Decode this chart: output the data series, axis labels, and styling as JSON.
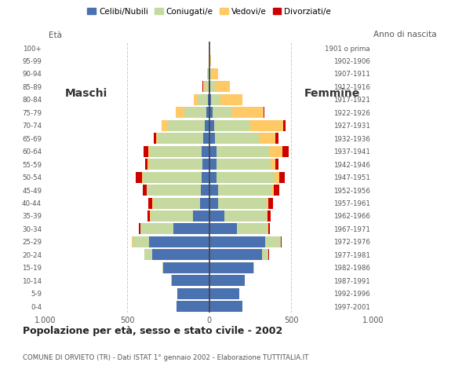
{
  "age_groups": [
    "0-4",
    "5-9",
    "10-14",
    "15-19",
    "20-24",
    "25-29",
    "30-34",
    "35-39",
    "40-44",
    "45-49",
    "50-54",
    "55-59",
    "60-64",
    "65-69",
    "70-74",
    "75-79",
    "80-84",
    "85-89",
    "90-94",
    "95-99",
    "100+"
  ],
  "birth_years": [
    "1997-2001",
    "1992-1996",
    "1987-1991",
    "1982-1986",
    "1977-1981",
    "1972-1976",
    "1967-1971",
    "1962-1966",
    "1957-1961",
    "1952-1956",
    "1947-1951",
    "1942-1946",
    "1937-1941",
    "1932-1936",
    "1927-1931",
    "1922-1926",
    "1917-1921",
    "1912-1916",
    "1907-1911",
    "1902-1906",
    "1901 o prima"
  ],
  "males": {
    "celibe": [
      200,
      195,
      230,
      280,
      350,
      370,
      220,
      100,
      55,
      50,
      45,
      40,
      45,
      35,
      30,
      20,
      10,
      5,
      2,
      0,
      0
    ],
    "coniugato": [
      0,
      0,
      2,
      5,
      45,
      100,
      200,
      260,
      290,
      330,
      360,
      330,
      320,
      280,
      230,
      130,
      60,
      25,
      8,
      0,
      0
    ],
    "vedovo": [
      0,
      0,
      0,
      0,
      0,
      1,
      2,
      2,
      2,
      3,
      5,
      5,
      8,
      12,
      30,
      55,
      25,
      8,
      2,
      0,
      0
    ],
    "divorziato": [
      0,
      0,
      0,
      0,
      2,
      3,
      8,
      15,
      25,
      25,
      40,
      18,
      30,
      12,
      3,
      2,
      2,
      2,
      0,
      0,
      0
    ]
  },
  "females": {
    "nubile": [
      200,
      185,
      215,
      270,
      320,
      340,
      170,
      90,
      55,
      55,
      45,
      45,
      45,
      35,
      30,
      20,
      10,
      5,
      2,
      2,
      0
    ],
    "coniugata": [
      0,
      0,
      2,
      5,
      40,
      95,
      185,
      260,
      295,
      325,
      355,
      330,
      320,
      270,
      220,
      120,
      60,
      30,
      10,
      2,
      0
    ],
    "vedova": [
      0,
      0,
      0,
      0,
      1,
      2,
      3,
      5,
      8,
      15,
      25,
      30,
      80,
      100,
      200,
      190,
      130,
      90,
      40,
      8,
      2
    ],
    "divorziata": [
      0,
      0,
      0,
      0,
      2,
      3,
      10,
      20,
      30,
      30,
      35,
      18,
      40,
      18,
      15,
      5,
      2,
      2,
      0,
      0,
      0
    ]
  },
  "colors": {
    "celibe": "#4a72b0",
    "coniugato": "#c5d9a0",
    "vedovo": "#ffc966",
    "divorziato": "#cc0000"
  },
  "legend_labels": [
    "Celibi/Nubili",
    "Coniugati/e",
    "Vedovi/e",
    "Divorziati/e"
  ],
  "title": "Popolazione per età, sesso e stato civile - 2002",
  "subtitle": "COMUNE DI ORVIETO (TR) - Dati ISTAT 1° gennaio 2002 - Elaborazione TUTTITALIA.IT",
  "label_maschi": "Maschi",
  "label_femmine": "Femmine",
  "ylabel_left": "Età",
  "ylabel_right": "Anno di nascita",
  "xlim": 1000,
  "bg_color": "#ffffff"
}
